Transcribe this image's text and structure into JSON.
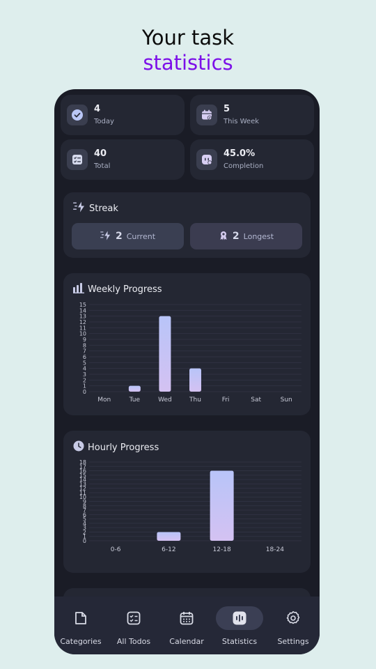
{
  "hero": {
    "line1": "Your task",
    "line2": "statistics"
  },
  "stats": [
    {
      "value": "4",
      "label": "Today",
      "icon": "check-circle-icon"
    },
    {
      "value": "5",
      "label": "This Week",
      "icon": "calendar-check-icon"
    },
    {
      "value": "40",
      "label": "Total",
      "icon": "checklist-icon"
    },
    {
      "value": "45.0%",
      "label": "Completion",
      "icon": "progress-face-icon"
    }
  ],
  "streak": {
    "title": "Streak",
    "current": {
      "value": "2",
      "label": "Current"
    },
    "longest": {
      "value": "2",
      "label": "Longest"
    }
  },
  "weekly": {
    "title": "Weekly Progress"
  },
  "hourly": {
    "title": "Hourly Progress"
  },
  "chart_data": [
    {
      "type": "bar",
      "title": "Weekly Progress",
      "categories": [
        "Mon",
        "Tue",
        "Wed",
        "Thu",
        "Fri",
        "Sat",
        "Sun"
      ],
      "values": [
        0,
        1,
        13,
        4,
        0,
        0,
        0
      ],
      "ylim": [
        0,
        15
      ],
      "yticks": [
        0,
        1,
        2,
        3,
        4,
        5,
        6,
        7,
        8,
        9,
        10,
        11,
        12,
        13,
        14,
        15
      ],
      "grid": true
    },
    {
      "type": "bar",
      "title": "Hourly Progress",
      "categories": [
        "0-6",
        "6-12",
        "12-18",
        "18-24"
      ],
      "values": [
        0,
        2,
        16,
        0
      ],
      "ylim": [
        0,
        18
      ],
      "yticks": [
        0,
        1,
        2,
        3,
        4,
        5,
        6,
        7,
        8,
        9,
        10,
        11,
        12,
        13,
        14,
        15,
        16,
        17,
        18
      ],
      "grid": true
    }
  ],
  "nav": [
    {
      "label": "Categories",
      "icon": "folder-icon",
      "active": false
    },
    {
      "label": "All Todos",
      "icon": "checklist-icon",
      "active": false
    },
    {
      "label": "Calendar",
      "icon": "calendar-icon",
      "active": false
    },
    {
      "label": "Statistics",
      "icon": "bar-chart-icon",
      "active": true
    },
    {
      "label": "Settings",
      "icon": "gear-icon",
      "active": false
    }
  ],
  "colors": {
    "accent": "#7c10e8",
    "bar_top_weekly": "#b8c4f8",
    "bar_bottom_weekly": "#d4c2f2",
    "phone_bg": "#1a1c26",
    "card_bg": "#242733"
  }
}
